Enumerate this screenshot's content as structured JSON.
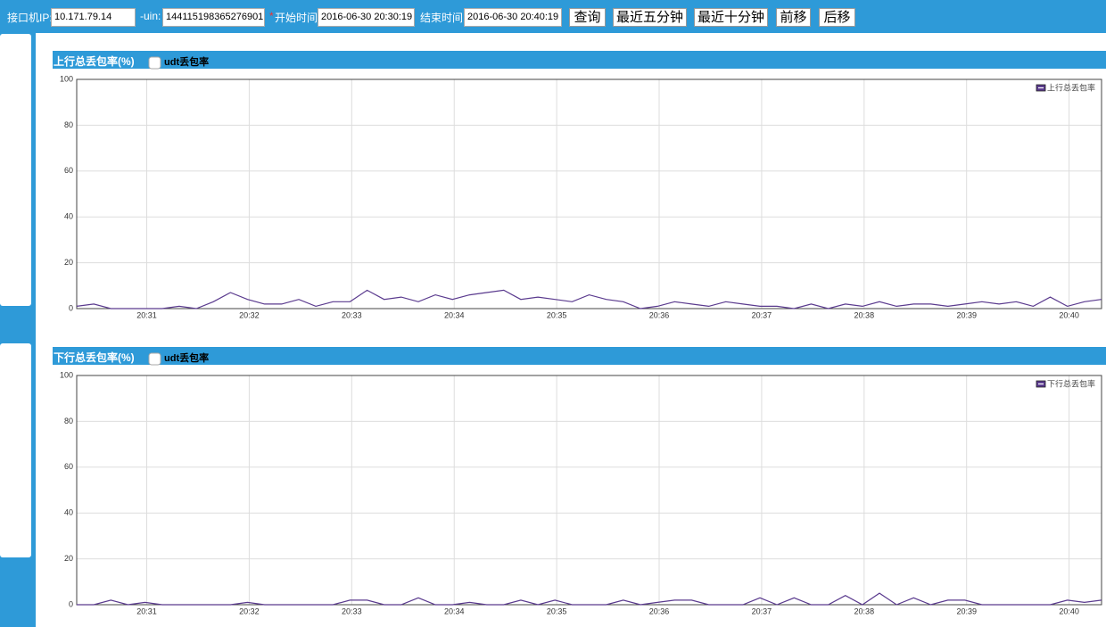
{
  "toolbar": {
    "ip_label": "接口机IP:",
    "ip": "10.171.79.14",
    "uin_label": "-uin:",
    "uin": "144115198365276901",
    "required_mark": "*",
    "start_label": "开始时间:",
    "start_time": "2016-06-30 20:30:19",
    "end_label": "结束时间:",
    "end_time": "2016-06-30 20:40:19",
    "buttons": [
      "查询",
      "最近五分钟",
      "最近十分钟",
      "前移",
      "后移"
    ]
  },
  "chart_data": [
    {
      "type": "line",
      "title": "上行总丢包率(%)",
      "checkbox_label": "udt丢包率",
      "series": [
        {
          "name": "上行总丢包率",
          "color": "#5a3a8e",
          "values": [
            1,
            2,
            0,
            0,
            0,
            0,
            1,
            0,
            3,
            7,
            4,
            2,
            2,
            4,
            1,
            3,
            3,
            8,
            4,
            5,
            3,
            6,
            4,
            6,
            7,
            8,
            4,
            5,
            4,
            3,
            6,
            4,
            3,
            0,
            1,
            3,
            2,
            1,
            3,
            2,
            1,
            1,
            0,
            2,
            0,
            2,
            1,
            3,
            1,
            2,
            2,
            1,
            2,
            3,
            2,
            3,
            1,
            5,
            1,
            3,
            4
          ]
        }
      ],
      "ylim": [
        0,
        100
      ],
      "yticks": [
        0,
        20,
        40,
        60,
        80,
        100
      ],
      "xticks": [
        "20:31",
        "20:32",
        "20:33",
        "20:34",
        "20:35",
        "20:36",
        "20:37",
        "20:38",
        "20:39",
        "20:40"
      ],
      "grid": true
    },
    {
      "type": "line",
      "title": "下行总丢包率(%)",
      "checkbox_label": "udt丢包率",
      "series": [
        {
          "name": "下行总丢包率",
          "color": "#5a3a8e",
          "values": [
            0,
            0,
            2,
            0,
            1,
            0,
            0,
            0,
            0,
            0,
            1,
            0,
            0,
            0,
            0,
            0,
            2,
            2,
            0,
            0,
            3,
            0,
            0,
            1,
            0,
            0,
            2,
            0,
            2,
            0,
            0,
            0,
            2,
            0,
            1,
            2,
            2,
            0,
            0,
            0,
            3,
            0,
            3,
            0,
            0,
            4,
            0,
            5,
            0,
            3,
            0,
            2,
            2,
            0,
            0,
            0,
            0,
            0,
            2,
            1,
            2
          ]
        }
      ],
      "ylim": [
        0,
        100
      ],
      "yticks": [
        0,
        20,
        40,
        60,
        80,
        100
      ],
      "xticks": [
        "20:31",
        "20:32",
        "20:33",
        "20:34",
        "20:35",
        "20:36",
        "20:37",
        "20:38",
        "20:39",
        "20:40"
      ],
      "grid": true
    }
  ]
}
